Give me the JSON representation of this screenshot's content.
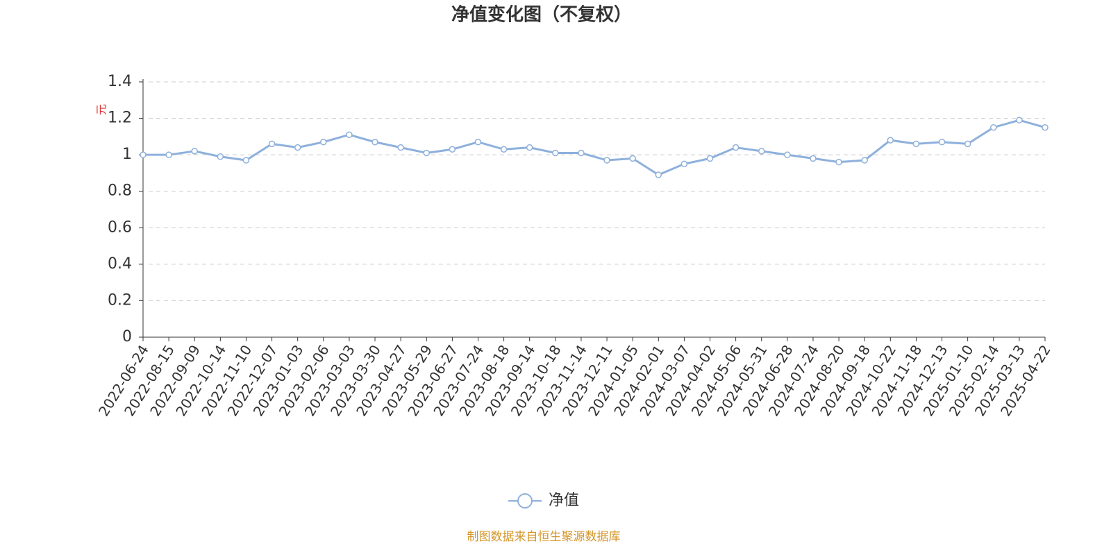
{
  "chart_data": {
    "type": "line",
    "title": "净值变化图（不复权）",
    "y_label": "元",
    "categories": [
      "2022-06-24",
      "2022-08-15",
      "2022-09-09",
      "2022-10-14",
      "2022-11-10",
      "2022-12-07",
      "2023-01-03",
      "2023-02-06",
      "2023-03-03",
      "2023-03-30",
      "2023-04-27",
      "2023-05-29",
      "2023-06-27",
      "2023-07-24",
      "2023-08-18",
      "2023-09-14",
      "2023-10-18",
      "2023-11-14",
      "2023-12-11",
      "2024-01-05",
      "2024-02-01",
      "2024-03-07",
      "2024-04-02",
      "2024-05-06",
      "2024-05-31",
      "2024-06-28",
      "2024-07-24",
      "2024-08-20",
      "2024-09-18",
      "2024-10-22",
      "2024-11-18",
      "2024-12-13",
      "2025-01-10",
      "2025-02-14",
      "2025-03-13",
      "2025-04-22"
    ],
    "series": [
      {
        "name": "净值",
        "color": "#8eb0dc",
        "values": [
          1.0,
          1.0,
          1.02,
          0.99,
          0.97,
          1.06,
          1.04,
          1.07,
          1.11,
          1.07,
          1.04,
          1.01,
          1.03,
          1.07,
          1.03,
          1.04,
          1.01,
          1.01,
          0.97,
          0.98,
          0.89,
          0.95,
          0.98,
          1.04,
          1.02,
          1.0,
          0.98,
          0.96,
          0.97,
          1.08,
          1.06,
          1.07,
          1.06,
          1.15,
          1.19,
          1.15
        ]
      }
    ],
    "ylim": [
      0,
      1.4
    ],
    "yticks": [
      0,
      0.2,
      0.4,
      0.6,
      0.8,
      1,
      1.2,
      1.4
    ],
    "grid": true,
    "source": "制图数据来自恒生聚源数据库"
  }
}
